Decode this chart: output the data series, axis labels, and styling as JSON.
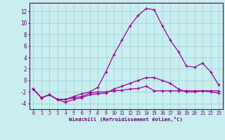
{
  "xlabel": "Windchill (Refroidissement éolien,°C)",
  "x": [
    0,
    1,
    2,
    3,
    4,
    5,
    6,
    7,
    8,
    9,
    10,
    11,
    12,
    13,
    14,
    15,
    16,
    17,
    18,
    19,
    20,
    21,
    22,
    23
  ],
  "line1": [
    -1.5,
    -3.0,
    -2.5,
    -3.3,
    -3.3,
    -3.0,
    -2.8,
    -2.2,
    -2.0,
    -2.0,
    -1.8,
    -1.7,
    -1.5,
    -1.4,
    -1.0,
    -1.8,
    -1.8,
    -1.8,
    -1.8,
    -1.8,
    -1.8,
    -1.8,
    -1.8,
    -1.8
  ],
  "line2": [
    -1.5,
    -3.0,
    -2.5,
    -3.3,
    -3.8,
    -3.3,
    -3.0,
    -2.5,
    -2.3,
    -2.2,
    -1.5,
    -1.0,
    -0.5,
    0.0,
    0.5,
    0.5,
    0.0,
    -0.5,
    -1.5,
    -2.0,
    -2.0,
    -1.8,
    -2.0,
    -2.2
  ],
  "line3": [
    -1.5,
    -3.0,
    -2.5,
    -3.3,
    -3.3,
    -2.8,
    -2.3,
    -2.0,
    -1.2,
    1.5,
    4.5,
    7.0,
    9.5,
    11.3,
    12.5,
    12.3,
    9.5,
    7.0,
    5.0,
    2.5,
    2.3,
    3.0,
    1.5,
    -0.8
  ],
  "bg_color": "#c8eef0",
  "line_color": "#990099",
  "grid_color": "#aad8dc",
  "axis_color": "#660066",
  "text_color": "#660066",
  "xlim": [
    -0.5,
    23.5
  ],
  "ylim": [
    -5,
    13.5
  ],
  "yticks": [
    -4,
    -2,
    0,
    2,
    4,
    6,
    8,
    10,
    12
  ],
  "xticks": [
    0,
    1,
    2,
    3,
    4,
    5,
    6,
    7,
    8,
    9,
    10,
    11,
    12,
    13,
    14,
    15,
    16,
    17,
    18,
    19,
    20,
    21,
    22,
    23
  ]
}
